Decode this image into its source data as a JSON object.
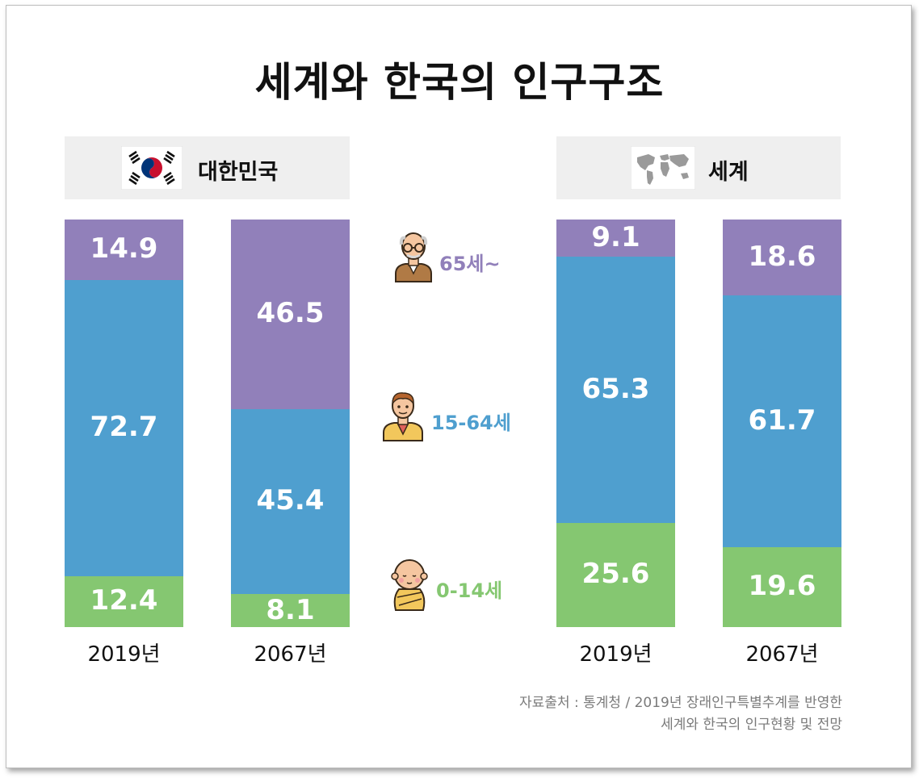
{
  "title": "세계와 한국의 인구구조",
  "colors": {
    "senior": "#9180ba",
    "working": "#4f9fcf",
    "child": "#85c771",
    "header_bg": "#efefef"
  },
  "panels": {
    "korea": {
      "label": "대한민국",
      "icon": "korea-flag-icon"
    },
    "world": {
      "label": "세계",
      "icon": "world-map-icon"
    }
  },
  "legend": {
    "senior": {
      "label": "65세~",
      "icon": "elderly-man-icon"
    },
    "working": {
      "label": "15-64세",
      "icon": "adult-man-icon"
    },
    "child": {
      "label": "0-14세",
      "icon": "baby-icon"
    }
  },
  "chart_data": {
    "type": "bar",
    "stacked": true,
    "unit": "%",
    "groups": [
      "대한민국",
      "세계"
    ],
    "categories": [
      "2019년",
      "2067년"
    ],
    "series": [
      {
        "name": "0-14세",
        "color": "#85c771",
        "values": {
          "대한민국": [
            12.4,
            8.1
          ],
          "세계": [
            25.6,
            19.6
          ]
        }
      },
      {
        "name": "15-64세",
        "color": "#4f9fcf",
        "values": {
          "대한민국": [
            72.7,
            45.4
          ],
          "세계": [
            65.3,
            61.7
          ]
        }
      },
      {
        "name": "65세~",
        "color": "#9180ba",
        "values": {
          "대한민국": [
            14.9,
            46.5
          ],
          "세계": [
            9.1,
            18.6
          ]
        }
      }
    ],
    "bars": [
      {
        "group": "대한민국",
        "year": "2019년",
        "child": 12.4,
        "working": 72.7,
        "senior": 14.9
      },
      {
        "group": "대한민국",
        "year": "2067년",
        "child": 8.1,
        "working": 45.4,
        "senior": 46.5
      },
      {
        "group": "세계",
        "year": "2019년",
        "child": 25.6,
        "working": 65.3,
        "senior": 9.1
      },
      {
        "group": "세계",
        "year": "2067년",
        "child": 19.6,
        "working": 61.7,
        "senior": 18.6
      }
    ]
  },
  "source": {
    "line1": "자료출처 : 통계청 / 2019년 장래인구특별추계를 반영한",
    "line2": "세계와 한국의 인구현황 및 전망"
  }
}
